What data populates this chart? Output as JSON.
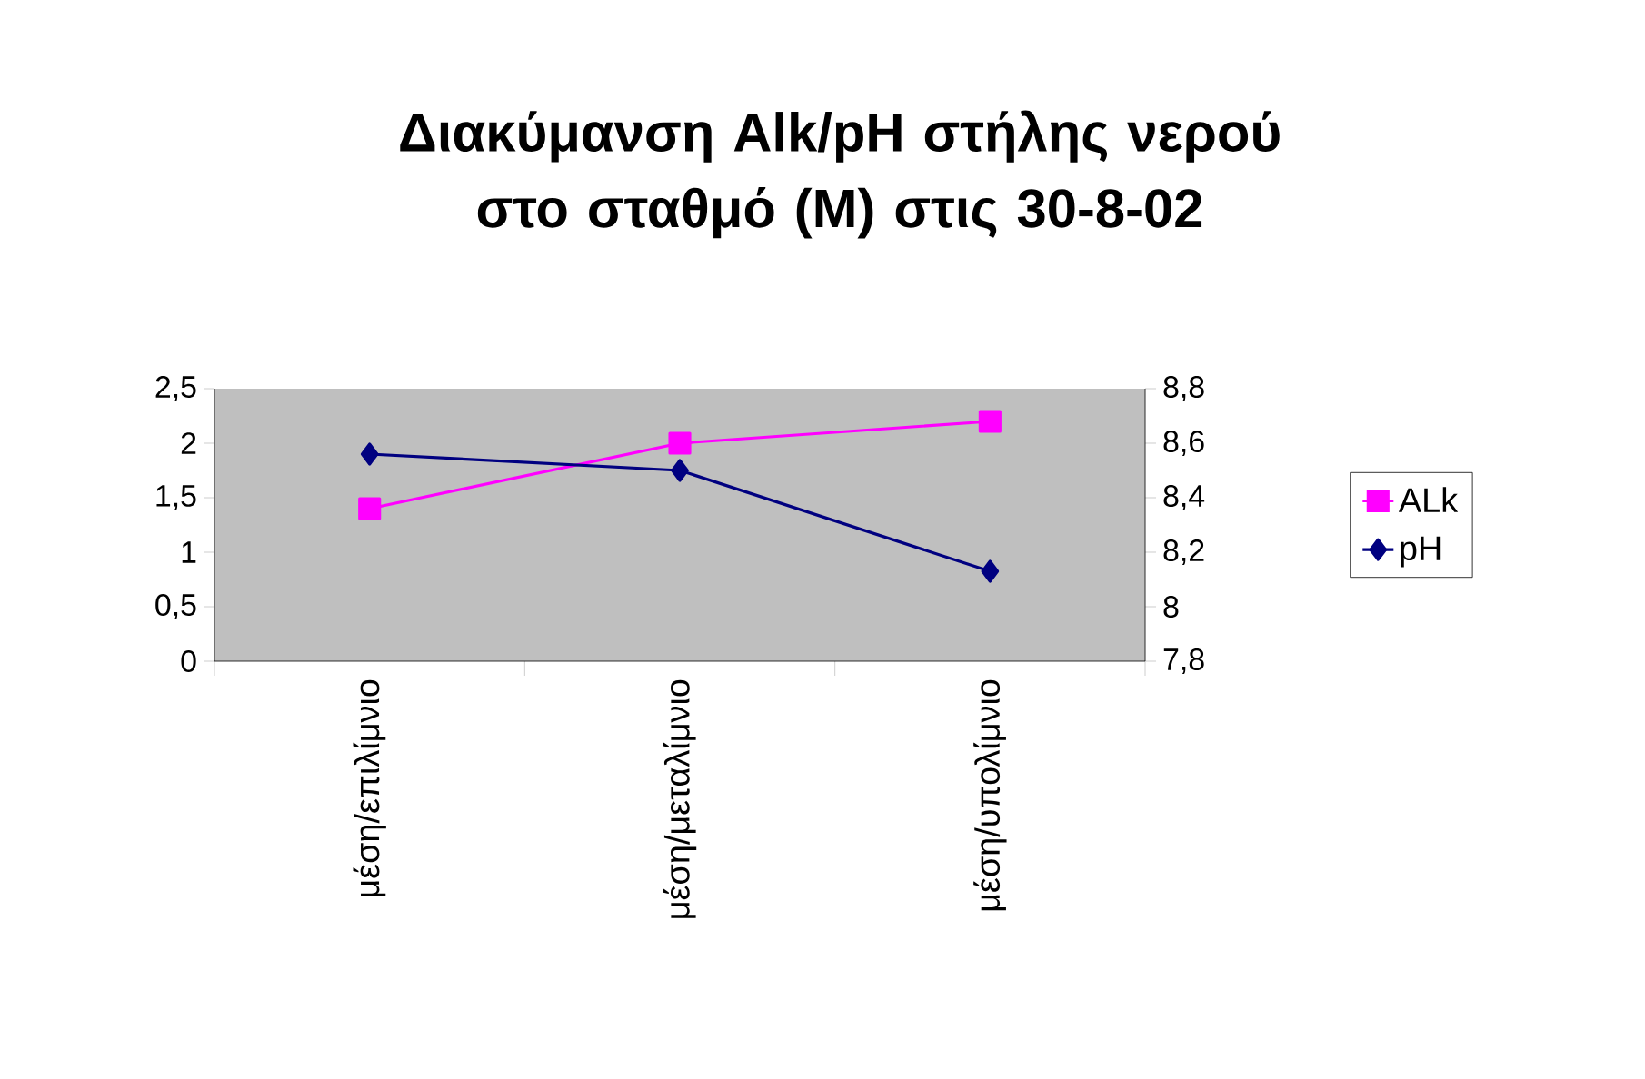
{
  "chart_data": {
    "type": "line",
    "title": "Διακύμανση Alk/pH στήλης νερού στο σταθμό (Μ) στις 30-8-02",
    "categories": [
      "μέση/επιλίμνιο",
      "μέση/μεταλίμνιο",
      "μέση/υπολίμνιο"
    ],
    "series": [
      {
        "name": "ALk",
        "color": "#ff00ff",
        "marker": "square",
        "values": [
          1.4,
          2.0,
          2.2
        ]
      },
      {
        "name": "pH",
        "color": "#000080",
        "marker": "diamond",
        "axis": "y2",
        "values": [
          8.56,
          8.5,
          8.13
        ]
      }
    ],
    "ylim": [
      0,
      2.5
    ],
    "yticks": [
      0,
      {
        "value": 0.5,
        "label": "0,5"
      },
      1,
      {
        "value": 1.5,
        "label": "1,5"
      },
      2,
      {
        "value": 2.5,
        "label": "2,5"
      }
    ],
    "y2lim": [
      7.8,
      8.8
    ],
    "y2ticks": [
      {
        "value": 7.8,
        "label": "7,8"
      },
      8,
      {
        "value": 8.2,
        "label": "8,2"
      },
      {
        "value": 8.4,
        "label": "8,4"
      },
      {
        "value": 8.6,
        "label": "8,6"
      },
      {
        "value": 8.8,
        "label": "8,8"
      }
    ],
    "grid": false,
    "legend": "right"
  }
}
